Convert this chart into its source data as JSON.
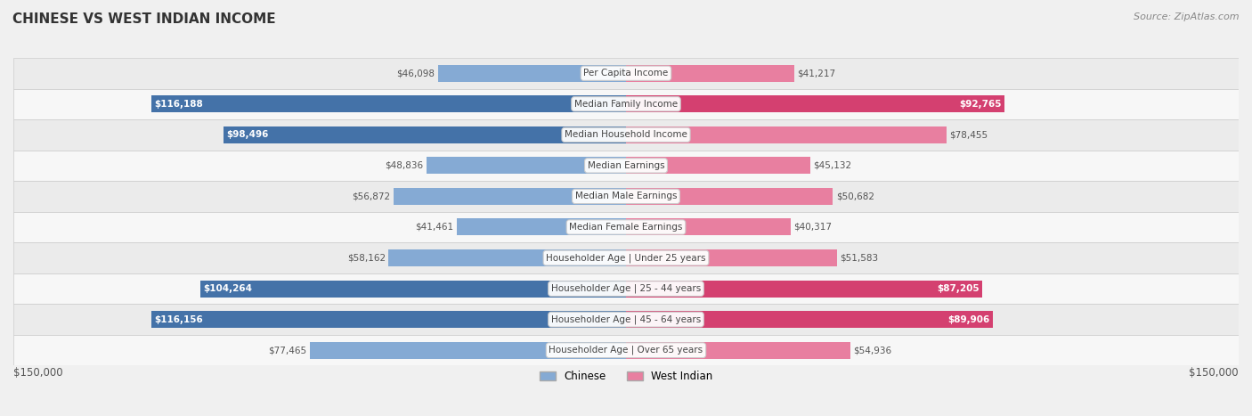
{
  "title": "CHINESE VS WEST INDIAN INCOME",
  "source": "Source: ZipAtlas.com",
  "max_val": 150000,
  "background_color": "#f0f0f0",
  "row_bg_color": "#e8e8e8",
  "row_bg_light": "#f5f5f5",
  "chinese_color": "#85aad4",
  "west_indian_color": "#e87fa0",
  "chinese_color_dark": "#4472a8",
  "west_indian_color_dark": "#d44070",
  "categories": [
    "Per Capita Income",
    "Median Family Income",
    "Median Household Income",
    "Median Earnings",
    "Median Male Earnings",
    "Median Female Earnings",
    "Householder Age | Under 25 years",
    "Householder Age | 25 - 44 years",
    "Householder Age | 45 - 64 years",
    "Householder Age | Over 65 years"
  ],
  "chinese_values": [
    46098,
    116188,
    98496,
    48836,
    56872,
    41461,
    58162,
    104264,
    116156,
    77465
  ],
  "west_indian_values": [
    41217,
    92765,
    78455,
    45132,
    50682,
    40317,
    51583,
    87205,
    89906,
    54936
  ],
  "chinese_labels": [
    "$46,098",
    "$116,188",
    "$98,496",
    "$48,836",
    "$56,872",
    "$41,461",
    "$58,162",
    "$104,264",
    "$116,156",
    "$77,465"
  ],
  "west_indian_labels": [
    "$41,217",
    "$92,765",
    "$78,455",
    "$45,132",
    "$50,682",
    "$40,317",
    "$51,583",
    "$87,205",
    "$89,906",
    "$54,936"
  ],
  "legend_chinese": "Chinese",
  "legend_west_indian": "West Indian",
  "xlabel_left": "$150,000",
  "xlabel_right": "$150,000"
}
